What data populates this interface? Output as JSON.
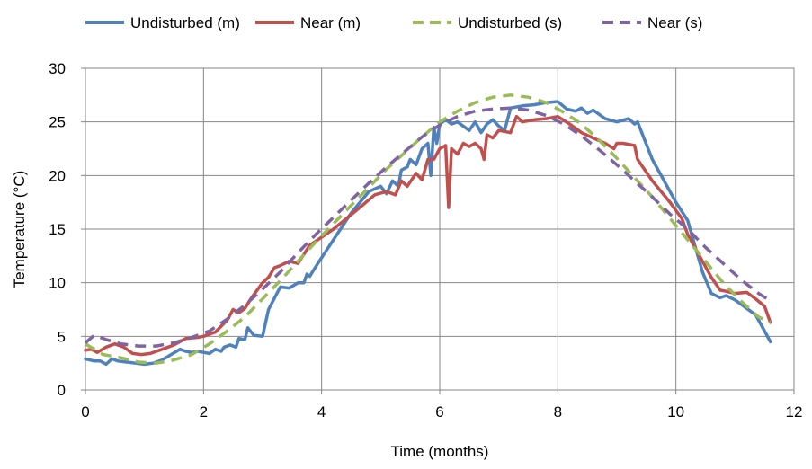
{
  "chart_data": {
    "type": "line",
    "title": "",
    "xlabel": "Time (months)",
    "ylabel": "Temperature (°C)",
    "xlim": [
      0,
      12
    ],
    "ylim": [
      0,
      30
    ],
    "xticks": [
      "0",
      "2",
      "4",
      "6",
      "8",
      "10",
      "12"
    ],
    "yticks": [
      "0",
      "5",
      "10",
      "15",
      "20",
      "25",
      "30"
    ],
    "grid": true,
    "legend_position": "top",
    "series": [
      {
        "name": "Undisturbed (m)",
        "color": "#4f81bd",
        "style": "solid",
        "x": [
          0.0,
          0.15,
          0.25,
          0.35,
          0.45,
          0.55,
          0.7,
          0.85,
          1.0,
          1.15,
          1.3,
          1.45,
          1.6,
          1.7,
          1.8,
          1.9,
          2.0,
          2.1,
          2.2,
          2.3,
          2.35,
          2.45,
          2.55,
          2.6,
          2.7,
          2.75,
          2.85,
          3.0,
          3.1,
          3.3,
          3.45,
          3.6,
          3.7,
          3.75,
          3.8,
          3.9,
          4.2,
          4.5,
          4.8,
          5.0,
          5.1,
          5.2,
          5.3,
          5.35,
          5.45,
          5.5,
          5.6,
          5.7,
          5.8,
          5.85,
          5.9,
          5.95,
          6.0,
          6.1,
          6.2,
          6.3,
          6.5,
          6.6,
          6.7,
          6.8,
          6.9,
          7.0,
          7.1,
          7.2,
          7.4,
          7.6,
          7.8,
          8.0,
          8.15,
          8.3,
          8.4,
          8.5,
          8.6,
          8.8,
          9.0,
          9.2,
          9.3,
          9.35,
          9.6,
          10.0,
          10.2,
          10.45,
          10.6,
          10.75,
          10.85,
          11.0,
          11.1,
          11.2,
          11.35,
          11.45,
          11.6
        ],
        "y": [
          2.9,
          2.7,
          2.7,
          2.4,
          2.9,
          2.7,
          2.6,
          2.5,
          2.4,
          2.5,
          2.8,
          3.3,
          3.8,
          3.6,
          3.5,
          3.6,
          3.5,
          3.4,
          3.8,
          3.6,
          4.0,
          4.2,
          4.0,
          4.8,
          4.7,
          5.8,
          5.1,
          5.0,
          7.5,
          9.6,
          9.5,
          10.0,
          10.0,
          10.8,
          10.6,
          11.5,
          14.0,
          16.5,
          18.5,
          19.0,
          18.3,
          19.5,
          19.0,
          20.5,
          20.8,
          21.5,
          21.0,
          22.5,
          23.0,
          20.0,
          24.5,
          23.0,
          24.8,
          25.2,
          24.8,
          25.0,
          24.2,
          25.0,
          24.0,
          24.8,
          25.2,
          24.6,
          24.2,
          26.3,
          26.5,
          26.6,
          26.8,
          26.9,
          26.2,
          26.0,
          26.3,
          25.8,
          26.1,
          25.3,
          25.0,
          25.3,
          24.8,
          25.0,
          21.5,
          17.5,
          15.8,
          11.0,
          9.0,
          8.6,
          8.8,
          8.4,
          8.0,
          7.6,
          7.0,
          6.0,
          4.5
        ]
      },
      {
        "name": "Near (m)",
        "color": "#c0504d",
        "style": "solid",
        "x": [
          0.0,
          0.1,
          0.2,
          0.35,
          0.5,
          0.65,
          0.8,
          0.95,
          1.1,
          1.3,
          1.5,
          1.7,
          1.9,
          2.0,
          2.2,
          2.4,
          2.5,
          2.6,
          2.7,
          2.8,
          3.0,
          3.1,
          3.2,
          3.3,
          3.45,
          3.6,
          3.8,
          4.2,
          4.6,
          4.9,
          5.1,
          5.25,
          5.35,
          5.45,
          5.6,
          5.7,
          5.8,
          5.9,
          6.0,
          6.1,
          6.15,
          6.2,
          6.3,
          6.4,
          6.5,
          6.6,
          6.7,
          6.75,
          6.8,
          6.9,
          7.0,
          7.2,
          7.3,
          7.4,
          7.6,
          7.8,
          8.0,
          8.2,
          8.4,
          8.6,
          8.8,
          8.95,
          9.0,
          9.1,
          9.3,
          9.35,
          9.6,
          9.9,
          10.1,
          10.2,
          10.4,
          10.6,
          10.75,
          10.85,
          11.0,
          11.2,
          11.35,
          11.5,
          11.6
        ],
        "y": [
          3.7,
          3.8,
          3.5,
          4.0,
          4.3,
          4.0,
          3.4,
          3.3,
          3.4,
          3.8,
          4.2,
          4.8,
          4.9,
          5.0,
          5.4,
          6.5,
          7.5,
          7.2,
          7.6,
          8.5,
          10.0,
          10.5,
          11.4,
          11.6,
          12.0,
          11.8,
          13.5,
          15.0,
          16.8,
          18.2,
          18.5,
          18.2,
          19.5,
          19.0,
          20.2,
          19.6,
          21.5,
          21.5,
          22.5,
          22.8,
          17.0,
          22.5,
          22.0,
          23.0,
          22.7,
          23.0,
          22.5,
          21.5,
          23.8,
          23.5,
          24.2,
          24.0,
          25.5,
          25.0,
          25.2,
          25.3,
          25.5,
          24.8,
          24.0,
          23.5,
          23.0,
          22.5,
          23.0,
          23.0,
          22.8,
          21.5,
          19.5,
          17.5,
          16.0,
          14.5,
          12.5,
          10.5,
          9.3,
          9.2,
          9.0,
          9.1,
          8.5,
          7.8,
          6.3
        ]
      },
      {
        "name": "Undisturbed (s)",
        "color": "#9bbb59",
        "style": "dashed",
        "x": [
          0.0,
          0.3,
          0.6,
          0.9,
          1.2,
          1.5,
          1.8,
          2.1,
          2.4,
          2.7,
          3.0,
          3.3,
          3.6,
          3.9,
          4.2,
          4.5,
          4.8,
          5.1,
          5.4,
          5.7,
          6.0,
          6.3,
          6.6,
          6.9,
          7.2,
          7.5,
          7.8,
          8.1,
          8.4,
          8.7,
          9.0,
          9.3,
          9.6,
          9.9,
          10.2,
          10.5,
          10.8,
          11.1,
          11.4,
          11.6
        ],
        "y": [
          4.3,
          3.3,
          3.0,
          2.6,
          2.5,
          2.8,
          3.3,
          4.3,
          5.5,
          6.8,
          8.5,
          10.2,
          12.0,
          13.8,
          15.5,
          17.2,
          18.9,
          20.6,
          22.1,
          23.6,
          25.0,
          26.0,
          26.8,
          27.3,
          27.5,
          27.3,
          26.8,
          25.9,
          24.8,
          23.3,
          21.6,
          19.8,
          18.0,
          16.0,
          14.0,
          12.0,
          10.0,
          8.3,
          6.8,
          6.3
        ]
      },
      {
        "name": "Near (s)",
        "color": "#8064a2",
        "style": "dashed",
        "x": [
          0.0,
          0.15,
          0.35,
          0.6,
          0.9,
          1.2,
          1.5,
          1.8,
          2.1,
          2.4,
          2.7,
          3.0,
          3.3,
          3.6,
          3.9,
          4.2,
          4.5,
          4.8,
          5.1,
          5.4,
          5.7,
          6.0,
          6.3,
          6.6,
          6.9,
          7.2,
          7.5,
          7.8,
          8.1,
          8.4,
          8.7,
          9.0,
          9.3,
          9.6,
          9.9,
          10.2,
          10.5,
          10.8,
          11.1,
          11.4,
          11.6
        ],
        "y": [
          4.4,
          5.1,
          4.7,
          4.3,
          4.1,
          4.1,
          4.4,
          4.9,
          5.5,
          6.6,
          7.9,
          9.4,
          11.0,
          12.8,
          14.5,
          16.1,
          17.7,
          19.3,
          20.8,
          22.2,
          23.6,
          24.7,
          25.5,
          26.0,
          26.2,
          26.3,
          26.1,
          25.6,
          24.8,
          23.7,
          22.4,
          21.0,
          19.5,
          18.0,
          16.4,
          15.0,
          13.3,
          11.8,
          10.3,
          9.0,
          8.3
        ]
      }
    ]
  }
}
